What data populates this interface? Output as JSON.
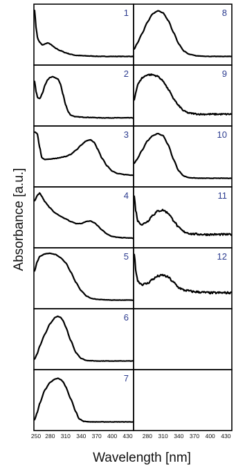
{
  "chart_data": {
    "type": "line",
    "layout": "2-column grid of stacked spectra panels (7 rows), no y tick labels",
    "ylabel": "Absorbance [a.u.]",
    "xlabel": "Wavelength [nm]",
    "xlim": [
      250,
      440
    ],
    "ylim": [
      0,
      1
    ],
    "grid": false,
    "legend": "none",
    "x_ticks": {
      "left": [
        250,
        280,
        310,
        340,
        370,
        400,
        430
      ],
      "right": [
        280,
        310,
        340,
        370,
        400,
        430
      ]
    },
    "x_tick_labels": {
      "left": [
        "250",
        "280",
        "310",
        "340",
        "370",
        "400",
        "430"
      ],
      "right": [
        "280",
        "310",
        "340",
        "370",
        "400",
        "430"
      ]
    },
    "line_color": "#000000",
    "panel_number_color": "#2b3b8f",
    "panels": [
      {
        "label": "1",
        "col": "left",
        "row": 0,
        "noise": 0.004,
        "points": [
          [
            250,
            0.95
          ],
          [
            253,
            0.6
          ],
          [
            256,
            0.4
          ],
          [
            260,
            0.33
          ],
          [
            265,
            0.28
          ],
          [
            270,
            0.3
          ],
          [
            275,
            0.32
          ],
          [
            280,
            0.3
          ],
          [
            285,
            0.26
          ],
          [
            290,
            0.22
          ],
          [
            300,
            0.17
          ],
          [
            310,
            0.13
          ],
          [
            320,
            0.1
          ],
          [
            330,
            0.08
          ],
          [
            350,
            0.07
          ],
          [
            380,
            0.06
          ],
          [
            410,
            0.06
          ],
          [
            440,
            0.06
          ]
        ]
      },
      {
        "label": "2",
        "col": "left",
        "row": 1,
        "noise": 0.004,
        "points": [
          [
            250,
            0.75
          ],
          [
            253,
            0.55
          ],
          [
            256,
            0.43
          ],
          [
            260,
            0.42
          ],
          [
            265,
            0.52
          ],
          [
            270,
            0.68
          ],
          [
            275,
            0.78
          ],
          [
            280,
            0.83
          ],
          [
            285,
            0.84
          ],
          [
            290,
            0.82
          ],
          [
            295,
            0.8
          ],
          [
            300,
            0.7
          ],
          [
            305,
            0.5
          ],
          [
            310,
            0.3
          ],
          [
            315,
            0.17
          ],
          [
            320,
            0.1
          ],
          [
            330,
            0.07
          ],
          [
            350,
            0.06
          ],
          [
            380,
            0.05
          ],
          [
            410,
            0.05
          ],
          [
            440,
            0.05
          ]
        ]
      },
      {
        "label": "3",
        "col": "left",
        "row": 2,
        "noise": 0.004,
        "points": [
          [
            250,
            0.95
          ],
          [
            255,
            0.92
          ],
          [
            260,
            0.65
          ],
          [
            264,
            0.45
          ],
          [
            270,
            0.42
          ],
          [
            280,
            0.43
          ],
          [
            290,
            0.44
          ],
          [
            300,
            0.46
          ],
          [
            310,
            0.48
          ],
          [
            320,
            0.52
          ],
          [
            330,
            0.6
          ],
          [
            340,
            0.7
          ],
          [
            350,
            0.78
          ],
          [
            358,
            0.8
          ],
          [
            365,
            0.75
          ],
          [
            372,
            0.62
          ],
          [
            380,
            0.45
          ],
          [
            390,
            0.3
          ],
          [
            400,
            0.2
          ],
          [
            410,
            0.15
          ],
          [
            425,
            0.13
          ],
          [
            440,
            0.12
          ]
        ]
      },
      {
        "label": "4",
        "col": "left",
        "row": 3,
        "noise": 0.004,
        "points": [
          [
            250,
            0.8
          ],
          [
            255,
            0.9
          ],
          [
            260,
            0.95
          ],
          [
            264,
            0.88
          ],
          [
            270,
            0.78
          ],
          [
            280,
            0.66
          ],
          [
            290,
            0.56
          ],
          [
            300,
            0.5
          ],
          [
            310,
            0.45
          ],
          [
            320,
            0.4
          ],
          [
            330,
            0.36
          ],
          [
            340,
            0.36
          ],
          [
            350,
            0.4
          ],
          [
            358,
            0.41
          ],
          [
            365,
            0.38
          ],
          [
            372,
            0.32
          ],
          [
            380,
            0.24
          ],
          [
            390,
            0.16
          ],
          [
            400,
            0.11
          ],
          [
            415,
            0.09
          ],
          [
            440,
            0.08
          ]
        ]
      },
      {
        "label": "5",
        "col": "left",
        "row": 4,
        "noise": 0.003,
        "points": [
          [
            250,
            0.62
          ],
          [
            255,
            0.8
          ],
          [
            260,
            0.9
          ],
          [
            270,
            0.95
          ],
          [
            280,
            0.96
          ],
          [
            290,
            0.94
          ],
          [
            300,
            0.88
          ],
          [
            310,
            0.78
          ],
          [
            320,
            0.6
          ],
          [
            330,
            0.4
          ],
          [
            340,
            0.24
          ],
          [
            350,
            0.14
          ],
          [
            360,
            0.09
          ],
          [
            375,
            0.07
          ],
          [
            400,
            0.06
          ],
          [
            440,
            0.06
          ]
        ]
      },
      {
        "label": "6",
        "col": "left",
        "row": 5,
        "noise": 0.003,
        "points": [
          [
            250,
            0.1
          ],
          [
            255,
            0.2
          ],
          [
            260,
            0.35
          ],
          [
            270,
            0.58
          ],
          [
            280,
            0.78
          ],
          [
            290,
            0.9
          ],
          [
            295,
            0.92
          ],
          [
            300,
            0.9
          ],
          [
            305,
            0.84
          ],
          [
            310,
            0.72
          ],
          [
            320,
            0.45
          ],
          [
            330,
            0.22
          ],
          [
            340,
            0.11
          ],
          [
            350,
            0.07
          ],
          [
            370,
            0.06
          ],
          [
            440,
            0.06
          ]
        ]
      },
      {
        "label": "7",
        "col": "left",
        "row": 6,
        "noise": 0.003,
        "points": [
          [
            250,
            0.1
          ],
          [
            255,
            0.24
          ],
          [
            260,
            0.42
          ],
          [
            270,
            0.68
          ],
          [
            280,
            0.82
          ],
          [
            290,
            0.89
          ],
          [
            295,
            0.9
          ],
          [
            300,
            0.88
          ],
          [
            305,
            0.83
          ],
          [
            310,
            0.74
          ],
          [
            320,
            0.5
          ],
          [
            330,
            0.25
          ],
          [
            336,
            0.12
          ],
          [
            345,
            0.07
          ],
          [
            360,
            0.06
          ],
          [
            440,
            0.06
          ]
        ]
      },
      {
        "label": "8",
        "col": "right",
        "row": 0,
        "noise": 0.003,
        "points": [
          [
            255,
            0.2
          ],
          [
            260,
            0.3
          ],
          [
            270,
            0.5
          ],
          [
            280,
            0.72
          ],
          [
            290,
            0.88
          ],
          [
            300,
            0.94
          ],
          [
            310,
            0.9
          ],
          [
            320,
            0.75
          ],
          [
            330,
            0.52
          ],
          [
            340,
            0.3
          ],
          [
            350,
            0.16
          ],
          [
            360,
            0.1
          ],
          [
            375,
            0.07
          ],
          [
            400,
            0.06
          ],
          [
            440,
            0.06
          ]
        ]
      },
      {
        "label": "9",
        "col": "right",
        "row": 1,
        "noise": 0.012,
        "points": [
          [
            255,
            0.4
          ],
          [
            258,
            0.55
          ],
          [
            262,
            0.7
          ],
          [
            270,
            0.82
          ],
          [
            280,
            0.88
          ],
          [
            290,
            0.88
          ],
          [
            300,
            0.85
          ],
          [
            310,
            0.76
          ],
          [
            320,
            0.6
          ],
          [
            330,
            0.42
          ],
          [
            340,
            0.28
          ],
          [
            350,
            0.18
          ],
          [
            360,
            0.14
          ],
          [
            380,
            0.12
          ],
          [
            410,
            0.12
          ],
          [
            440,
            0.12
          ]
        ]
      },
      {
        "label": "10",
        "col": "right",
        "row": 2,
        "noise": 0.003,
        "points": [
          [
            255,
            0.35
          ],
          [
            260,
            0.42
          ],
          [
            270,
            0.6
          ],
          [
            280,
            0.78
          ],
          [
            290,
            0.88
          ],
          [
            300,
            0.92
          ],
          [
            310,
            0.88
          ],
          [
            320,
            0.7
          ],
          [
            330,
            0.42
          ],
          [
            340,
            0.2
          ],
          [
            350,
            0.1
          ],
          [
            360,
            0.07
          ],
          [
            380,
            0.06
          ],
          [
            440,
            0.06
          ]
        ]
      },
      {
        "label": "11",
        "col": "right",
        "row": 3,
        "noise": 0.016,
        "points": [
          [
            255,
            0.88
          ],
          [
            258,
            0.6
          ],
          [
            262,
            0.4
          ],
          [
            270,
            0.34
          ],
          [
            280,
            0.4
          ],
          [
            290,
            0.52
          ],
          [
            300,
            0.6
          ],
          [
            310,
            0.62
          ],
          [
            320,
            0.56
          ],
          [
            330,
            0.42
          ],
          [
            340,
            0.28
          ],
          [
            350,
            0.2
          ],
          [
            365,
            0.16
          ],
          [
            390,
            0.15
          ],
          [
            440,
            0.15
          ]
        ]
      },
      {
        "label": "12",
        "col": "right",
        "row": 4,
        "noise": 0.018,
        "points": [
          [
            255,
            0.95
          ],
          [
            258,
            0.62
          ],
          [
            262,
            0.42
          ],
          [
            270,
            0.36
          ],
          [
            280,
            0.38
          ],
          [
            290,
            0.46
          ],
          [
            300,
            0.52
          ],
          [
            310,
            0.54
          ],
          [
            320,
            0.5
          ],
          [
            330,
            0.4
          ],
          [
            340,
            0.3
          ],
          [
            350,
            0.25
          ],
          [
            370,
            0.22
          ],
          [
            400,
            0.2
          ],
          [
            440,
            0.2
          ]
        ]
      }
    ]
  }
}
